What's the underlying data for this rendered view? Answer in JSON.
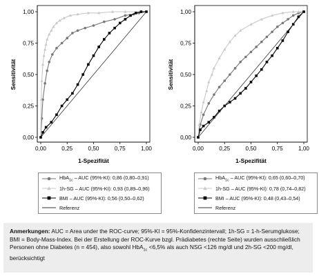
{
  "chart_data": [
    {
      "type": "line",
      "xlabel": "1-Spezifität",
      "ylabel": "Sensitivität",
      "xlim": [
        0,
        1
      ],
      "ylim": [
        0,
        1
      ],
      "ticks": [
        "0,00",
        "0,25",
        "0,50",
        "0,75",
        "1,00"
      ],
      "grid": false,
      "series": [
        {
          "name": "HbA1c – AUC (95%-KI): 0,86 (0,80–0,91)",
          "color": "#777777",
          "marker": "circle",
          "x": [
            0,
            0.01,
            0.02,
            0.04,
            0.06,
            0.08,
            0.11,
            0.15,
            0.2,
            0.25,
            0.3,
            0.35,
            0.42,
            0.5,
            0.6,
            0.7,
            0.8,
            0.88,
            0.93,
            1
          ],
          "y": [
            0,
            0.15,
            0.3,
            0.43,
            0.53,
            0.6,
            0.66,
            0.71,
            0.75,
            0.79,
            0.83,
            0.85,
            0.87,
            0.89,
            0.92,
            0.94,
            0.97,
            0.98,
            0.99,
            1
          ]
        },
        {
          "name": "1h-SG – AUC (95%-KI): 0,93 (0,89–0,96)",
          "color": "#c8c8c8",
          "marker": "triangle",
          "x": [
            0,
            0.005,
            0.01,
            0.02,
            0.03,
            0.04,
            0.05,
            0.06,
            0.08,
            0.1,
            0.12,
            0.15,
            0.18,
            0.22,
            0.28,
            0.35,
            0.45,
            0.55,
            0.68,
            0.8,
            1
          ],
          "y": [
            0,
            0.3,
            0.45,
            0.58,
            0.65,
            0.7,
            0.74,
            0.78,
            0.82,
            0.85,
            0.88,
            0.91,
            0.93,
            0.95,
            0.97,
            0.98,
            0.99,
            0.99,
            1,
            1,
            1
          ]
        },
        {
          "name": "BMI – AUC (95%-KI): 0,56 (0,50–0,62)",
          "color": "#000000",
          "marker": "square",
          "x": [
            0,
            0.02,
            0.05,
            0.1,
            0.15,
            0.2,
            0.25,
            0.3,
            0.35,
            0.4,
            0.45,
            0.5,
            0.55,
            0.6,
            0.65,
            0.7,
            0.75,
            0.8,
            0.85,
            0.9,
            0.95,
            1
          ],
          "y": [
            0,
            0.04,
            0.08,
            0.12,
            0.18,
            0.25,
            0.3,
            0.35,
            0.42,
            0.5,
            0.58,
            0.65,
            0.72,
            0.78,
            0.83,
            0.87,
            0.91,
            0.94,
            0.97,
            0.99,
            1,
            1
          ]
        },
        {
          "name": "Referenz",
          "color": "#333333",
          "marker": "none",
          "x": [
            0,
            1
          ],
          "y": [
            0,
            1
          ]
        }
      ]
    },
    {
      "type": "line",
      "xlabel": "1-Spezifität",
      "ylabel": "Sensitivität",
      "xlim": [
        0,
        1
      ],
      "ylim": [
        0,
        1
      ],
      "ticks": [
        "0,00",
        "0,25",
        "0,50",
        "0,75",
        "1,00"
      ],
      "grid": false,
      "series": [
        {
          "name": "HbA1c – AUC (95%-KI): 0,65 (0,60–0,70)",
          "color": "#777777",
          "marker": "circle",
          "x": [
            0,
            0.02,
            0.05,
            0.1,
            0.15,
            0.2,
            0.25,
            0.3,
            0.35,
            0.4,
            0.45,
            0.5,
            0.55,
            0.6,
            0.65,
            0.7,
            0.75,
            0.8,
            0.85,
            0.9,
            0.95,
            1
          ],
          "y": [
            0,
            0.1,
            0.18,
            0.27,
            0.34,
            0.4,
            0.45,
            0.5,
            0.55,
            0.6,
            0.64,
            0.68,
            0.72,
            0.76,
            0.8,
            0.84,
            0.88,
            0.91,
            0.94,
            0.97,
            0.99,
            1
          ]
        },
        {
          "name": "1h-SG – AUC (95%-KI): 0,78 (0,74–0,82)",
          "color": "#c8c8c8",
          "marker": "triangle",
          "x": [
            0,
            0.01,
            0.03,
            0.05,
            0.08,
            0.1,
            0.13,
            0.15,
            0.2,
            0.25,
            0.3,
            0.35,
            0.4,
            0.5,
            0.6,
            0.7,
            0.8,
            0.9,
            0.95,
            1
          ],
          "y": [
            0,
            0.1,
            0.2,
            0.28,
            0.37,
            0.44,
            0.5,
            0.55,
            0.63,
            0.7,
            0.76,
            0.81,
            0.85,
            0.9,
            0.94,
            0.97,
            0.99,
            1,
            1,
            1
          ]
        },
        {
          "name": "BMI – AUC (95%-KI): 0,48 (0,43–0,54)",
          "color": "#000000",
          "marker": "square",
          "x": [
            0,
            0.02,
            0.05,
            0.1,
            0.15,
            0.2,
            0.25,
            0.3,
            0.35,
            0.4,
            0.45,
            0.5,
            0.55,
            0.6,
            0.65,
            0.7,
            0.75,
            0.8,
            0.85,
            0.9,
            0.95,
            1
          ],
          "y": [
            0,
            0.06,
            0.09,
            0.12,
            0.16,
            0.21,
            0.25,
            0.28,
            0.31,
            0.35,
            0.39,
            0.44,
            0.49,
            0.54,
            0.6,
            0.65,
            0.71,
            0.77,
            0.84,
            0.9,
            0.96,
            1
          ]
        },
        {
          "name": "Referenz",
          "color": "#333333",
          "marker": "none",
          "x": [
            0,
            1
          ],
          "y": [
            0,
            1
          ]
        }
      ]
    }
  ],
  "legends": [
    [
      {
        "main": "HbA",
        "sub": "1c",
        "rest": " – AUC (95%-KI): 0,86 (0,80–0,91)",
        "marker": "circle",
        "color": "#777777"
      },
      {
        "main": "1h-SG – AUC (95%-KI): 0,93 (0,89–0,96)",
        "sub": "",
        "rest": "",
        "marker": "triangle",
        "color": "#c8c8c8"
      },
      {
        "main": "BMI – AUC (95%-KI): 0,56 (0,50–0,62)",
        "sub": "",
        "rest": "",
        "marker": "square",
        "color": "#000000"
      },
      {
        "main": "Referenz",
        "sub": "",
        "rest": "",
        "marker": "none",
        "color": "#333333"
      }
    ],
    [
      {
        "main": "HbA",
        "sub": "1c",
        "rest": " – AUC (95%-KI): 0,65 (0,60–0,70)",
        "marker": "circle",
        "color": "#777777"
      },
      {
        "main": "1h-SG – AUC (95%-KI): 0,78 (0,74–0,82)",
        "sub": "",
        "rest": "",
        "marker": "triangle",
        "color": "#c8c8c8"
      },
      {
        "main": "BMI – AUC (95%-KI): 0,48 (0,43–0,54)",
        "sub": "",
        "rest": "",
        "marker": "square",
        "color": "#000000"
      },
      {
        "main": "Referenz",
        "sub": "",
        "rest": "",
        "marker": "none",
        "color": "#333333"
      }
    ]
  ],
  "notes": {
    "label": "Anmerkungen:",
    "text_1": " AUC = Area under the ROC-curve; 95%-KI = 95%-Konfidenzintervall; 1h-SG = 1-h-Serumglukose; BMI = Body-Mass-Index. Bei der Erstellung der ROC-Kurve bzgl. Prädiabetes (rechte Seite) wurden ausschließlich Personen ohne Diabetes (n = 454), also sowohl HbA",
    "sub": "1c",
    "text_2": " <6,5% als auch NSG <126 mg/dl und 2h-SG <200 mg/dl, berücksichtigt"
  }
}
